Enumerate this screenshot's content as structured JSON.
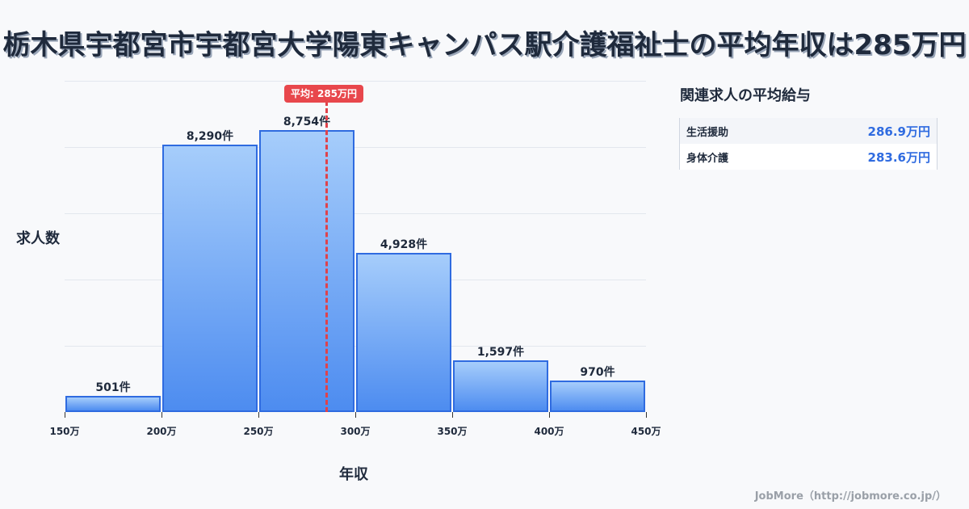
{
  "title": "栃木県宇都宮市宇都宮大学陽東キャンパス駅介護福祉士の平均年収は285万円",
  "chart_data": {
    "type": "bar",
    "title": "栃木県宇都宮市宇都宮大学陽東キャンパス駅介護福祉士の平均年収は285万円",
    "xlabel": "年収",
    "ylabel": "求人数",
    "categories": [
      "150万-200万",
      "200万-250万",
      "250万-300万",
      "300万-350万",
      "350万-400万",
      "400万-450万"
    ],
    "values": [
      501,
      8290,
      8754,
      4928,
      1597,
      970
    ],
    "value_labels": [
      "501件",
      "8,290件",
      "8,754件",
      "4,928件",
      "1,597件",
      "970件"
    ],
    "x_ticks": [
      "150万",
      "200万",
      "250万",
      "300万",
      "350万",
      "400万",
      "450万"
    ],
    "xlim": [
      150,
      450
    ],
    "ylim": [
      0,
      10270
    ],
    "grid": true,
    "average": {
      "value": 285,
      "label": "平均: 285万円",
      "color": "#e8474c"
    },
    "bar_color": "#4d8cf0",
    "bar_border_color": "#2f6be0"
  },
  "side_panel": {
    "title": "関連求人の平均給与",
    "rows": [
      {
        "name": "生活援助",
        "value": "286.9万円"
      },
      {
        "name": "身体介護",
        "value": "283.6万円"
      }
    ]
  },
  "footer": "JobMore（http://jobmore.co.jp/）"
}
